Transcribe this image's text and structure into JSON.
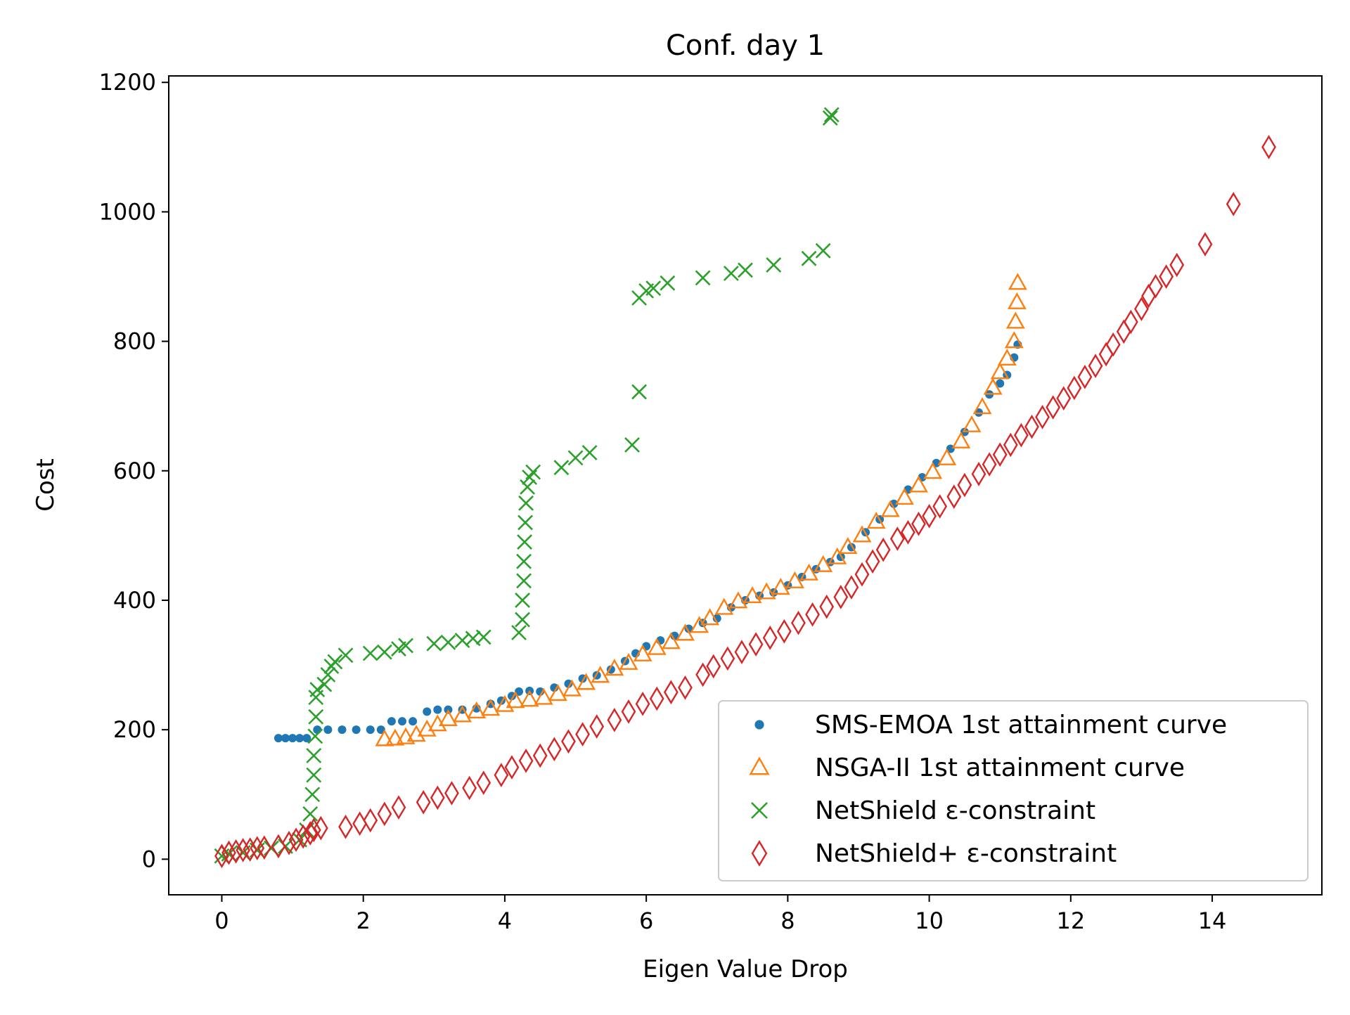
{
  "chart_data": {
    "type": "scatter",
    "title": "Conf. day 1",
    "xlabel": "Eigen Value Drop",
    "ylabel": "Cost",
    "xlim": [
      -0.75,
      15.55
    ],
    "ylim": [
      -55,
      1210
    ],
    "xticks": [
      0,
      2,
      4,
      6,
      8,
      10,
      12,
      14
    ],
    "yticks": [
      0,
      200,
      400,
      600,
      800,
      1000,
      1200
    ],
    "grid": false,
    "legend_position": "bottom-right",
    "series": [
      {
        "name": "SMS-EMOA 1st attainment curve",
        "marker": "dot",
        "color": "#1f77b4",
        "points": [
          [
            0.8,
            187
          ],
          [
            0.9,
            187
          ],
          [
            1.0,
            187
          ],
          [
            1.1,
            187
          ],
          [
            1.2,
            187
          ],
          [
            1.35,
            200
          ],
          [
            1.5,
            200
          ],
          [
            1.7,
            200
          ],
          [
            1.9,
            200
          ],
          [
            2.1,
            200
          ],
          [
            2.25,
            200
          ],
          [
            2.4,
            213
          ],
          [
            2.55,
            213
          ],
          [
            2.7,
            213
          ],
          [
            2.9,
            228
          ],
          [
            3.05,
            231
          ],
          [
            3.2,
            231
          ],
          [
            3.4,
            231
          ],
          [
            3.6,
            233
          ],
          [
            3.8,
            240
          ],
          [
            3.95,
            245
          ],
          [
            4.1,
            252
          ],
          [
            4.2,
            259
          ],
          [
            4.35,
            260
          ],
          [
            4.5,
            259
          ],
          [
            4.7,
            265
          ],
          [
            4.9,
            271
          ],
          [
            5.1,
            279
          ],
          [
            5.3,
            284
          ],
          [
            5.5,
            293
          ],
          [
            5.7,
            306
          ],
          [
            5.85,
            318
          ],
          [
            6.0,
            329
          ],
          [
            6.2,
            338
          ],
          [
            6.4,
            345
          ],
          [
            6.6,
            356
          ],
          [
            6.8,
            365
          ],
          [
            7.0,
            372
          ],
          [
            7.2,
            389
          ],
          [
            7.4,
            400
          ],
          [
            7.6,
            407
          ],
          [
            7.8,
            412
          ],
          [
            8.0,
            423
          ],
          [
            8.2,
            436
          ],
          [
            8.4,
            448
          ],
          [
            8.6,
            459
          ],
          [
            8.75,
            467
          ],
          [
            8.9,
            482
          ],
          [
            9.1,
            505
          ],
          [
            9.3,
            525
          ],
          [
            9.5,
            549
          ],
          [
            9.7,
            571
          ],
          [
            9.9,
            590
          ],
          [
            10.1,
            612
          ],
          [
            10.3,
            634
          ],
          [
            10.5,
            660
          ],
          [
            10.7,
            690
          ],
          [
            10.85,
            718
          ],
          [
            11.0,
            735
          ],
          [
            11.1,
            748
          ],
          [
            11.2,
            775
          ],
          [
            11.25,
            795
          ]
        ]
      },
      {
        "name": "NSGA-II 1st attainment curve",
        "marker": "triangle",
        "color": "#ff7f0e",
        "points": [
          [
            2.3,
            185
          ],
          [
            2.45,
            186
          ],
          [
            2.6,
            188
          ],
          [
            2.75,
            192
          ],
          [
            2.9,
            200
          ],
          [
            3.05,
            208
          ],
          [
            3.2,
            216
          ],
          [
            3.4,
            222
          ],
          [
            3.6,
            228
          ],
          [
            3.8,
            232
          ],
          [
            4.0,
            238
          ],
          [
            4.15,
            244
          ],
          [
            4.35,
            246
          ],
          [
            4.55,
            249
          ],
          [
            4.75,
            255
          ],
          [
            4.95,
            262
          ],
          [
            5.15,
            272
          ],
          [
            5.35,
            283
          ],
          [
            5.55,
            294
          ],
          [
            5.75,
            303
          ],
          [
            5.95,
            316
          ],
          [
            6.15,
            326
          ],
          [
            6.35,
            335
          ],
          [
            6.55,
            348
          ],
          [
            6.75,
            360
          ],
          [
            6.9,
            372
          ],
          [
            7.1,
            388
          ],
          [
            7.3,
            398
          ],
          [
            7.5,
            406
          ],
          [
            7.7,
            412
          ],
          [
            7.9,
            419
          ],
          [
            8.1,
            429
          ],
          [
            8.3,
            441
          ],
          [
            8.5,
            454
          ],
          [
            8.7,
            466
          ],
          [
            8.85,
            482
          ],
          [
            9.05,
            500
          ],
          [
            9.25,
            521
          ],
          [
            9.45,
            539
          ],
          [
            9.65,
            558
          ],
          [
            9.85,
            577
          ],
          [
            10.05,
            598
          ],
          [
            10.25,
            619
          ],
          [
            10.45,
            645
          ],
          [
            10.6,
            670
          ],
          [
            10.75,
            698
          ],
          [
            10.9,
            728
          ],
          [
            11.0,
            752
          ],
          [
            11.1,
            773
          ],
          [
            11.2,
            800
          ],
          [
            11.22,
            830
          ],
          [
            11.24,
            860
          ],
          [
            11.25,
            890
          ]
        ]
      },
      {
        "name": "NetShield ε-constraint",
        "marker": "x",
        "color": "#2ca02c",
        "points": [
          [
            0.0,
            5
          ],
          [
            0.1,
            8
          ],
          [
            0.3,
            10
          ],
          [
            0.5,
            14
          ],
          [
            0.7,
            17
          ],
          [
            0.9,
            20
          ],
          [
            1.1,
            30
          ],
          [
            1.2,
            45
          ],
          [
            1.25,
            70
          ],
          [
            1.28,
            100
          ],
          [
            1.3,
            130
          ],
          [
            1.3,
            160
          ],
          [
            1.32,
            190
          ],
          [
            1.33,
            220
          ],
          [
            1.33,
            250
          ],
          [
            1.35,
            262
          ],
          [
            1.45,
            270
          ],
          [
            1.5,
            285
          ],
          [
            1.55,
            298
          ],
          [
            1.6,
            305
          ],
          [
            1.75,
            315
          ],
          [
            2.1,
            318
          ],
          [
            2.3,
            320
          ],
          [
            2.5,
            325
          ],
          [
            2.6,
            330
          ],
          [
            3.0,
            333
          ],
          [
            3.2,
            335
          ],
          [
            3.4,
            338
          ],
          [
            3.55,
            341
          ],
          [
            3.7,
            343
          ],
          [
            4.2,
            350
          ],
          [
            4.25,
            370
          ],
          [
            4.25,
            400
          ],
          [
            4.27,
            430
          ],
          [
            4.27,
            460
          ],
          [
            4.28,
            490
          ],
          [
            4.29,
            520
          ],
          [
            4.3,
            550
          ],
          [
            4.32,
            575
          ],
          [
            4.35,
            590
          ],
          [
            4.4,
            598
          ],
          [
            4.8,
            605
          ],
          [
            5.0,
            620
          ],
          [
            5.2,
            628
          ],
          [
            5.8,
            640
          ],
          [
            5.9,
            722
          ],
          [
            5.9,
            867
          ],
          [
            6.0,
            878
          ],
          [
            6.1,
            882
          ],
          [
            6.3,
            890
          ],
          [
            6.8,
            898
          ],
          [
            7.2,
            905
          ],
          [
            7.4,
            910
          ],
          [
            7.8,
            918
          ],
          [
            8.3,
            928
          ],
          [
            8.5,
            940
          ],
          [
            8.6,
            1145
          ],
          [
            8.62,
            1150
          ]
        ]
      },
      {
        "name": "NetShield+ ε-constraint",
        "marker": "diamond",
        "color": "#d62728",
        "points": [
          [
            0.0,
            5
          ],
          [
            0.1,
            10
          ],
          [
            0.2,
            12
          ],
          [
            0.3,
            14
          ],
          [
            0.4,
            15
          ],
          [
            0.5,
            17
          ],
          [
            0.6,
            18
          ],
          [
            0.8,
            20
          ],
          [
            0.95,
            25
          ],
          [
            1.05,
            30
          ],
          [
            1.15,
            35
          ],
          [
            1.25,
            40
          ],
          [
            1.3,
            45
          ],
          [
            1.4,
            48
          ],
          [
            1.75,
            50
          ],
          [
            1.95,
            55
          ],
          [
            2.1,
            60
          ],
          [
            2.3,
            70
          ],
          [
            2.5,
            80
          ],
          [
            2.85,
            88
          ],
          [
            3.05,
            95
          ],
          [
            3.25,
            102
          ],
          [
            3.5,
            110
          ],
          [
            3.7,
            118
          ],
          [
            3.95,
            130
          ],
          [
            4.1,
            142
          ],
          [
            4.3,
            152
          ],
          [
            4.5,
            160
          ],
          [
            4.7,
            170
          ],
          [
            4.9,
            182
          ],
          [
            5.1,
            193
          ],
          [
            5.3,
            205
          ],
          [
            5.55,
            215
          ],
          [
            5.75,
            228
          ],
          [
            5.95,
            240
          ],
          [
            6.15,
            248
          ],
          [
            6.35,
            258
          ],
          [
            6.55,
            265
          ],
          [
            6.8,
            285
          ],
          [
            6.95,
            298
          ],
          [
            7.15,
            310
          ],
          [
            7.35,
            320
          ],
          [
            7.55,
            332
          ],
          [
            7.75,
            342
          ],
          [
            7.95,
            352
          ],
          [
            8.15,
            365
          ],
          [
            8.35,
            378
          ],
          [
            8.55,
            390
          ],
          [
            8.75,
            405
          ],
          [
            8.9,
            420
          ],
          [
            9.05,
            440
          ],
          [
            9.2,
            460
          ],
          [
            9.35,
            478
          ],
          [
            9.55,
            495
          ],
          [
            9.7,
            505
          ],
          [
            9.85,
            518
          ],
          [
            10.0,
            530
          ],
          [
            10.15,
            545
          ],
          [
            10.35,
            560
          ],
          [
            10.5,
            578
          ],
          [
            10.7,
            595
          ],
          [
            10.85,
            610
          ],
          [
            11.0,
            625
          ],
          [
            11.15,
            640
          ],
          [
            11.3,
            655
          ],
          [
            11.45,
            668
          ],
          [
            11.6,
            683
          ],
          [
            11.75,
            698
          ],
          [
            11.9,
            712
          ],
          [
            12.05,
            728
          ],
          [
            12.2,
            745
          ],
          [
            12.35,
            762
          ],
          [
            12.5,
            780
          ],
          [
            12.6,
            795
          ],
          [
            12.75,
            815
          ],
          [
            12.85,
            830
          ],
          [
            13.0,
            850
          ],
          [
            13.1,
            870
          ],
          [
            13.2,
            885
          ],
          [
            13.35,
            900
          ],
          [
            13.5,
            918
          ],
          [
            13.9,
            950
          ],
          [
            14.3,
            1012
          ],
          [
            14.8,
            1100
          ]
        ]
      }
    ]
  }
}
